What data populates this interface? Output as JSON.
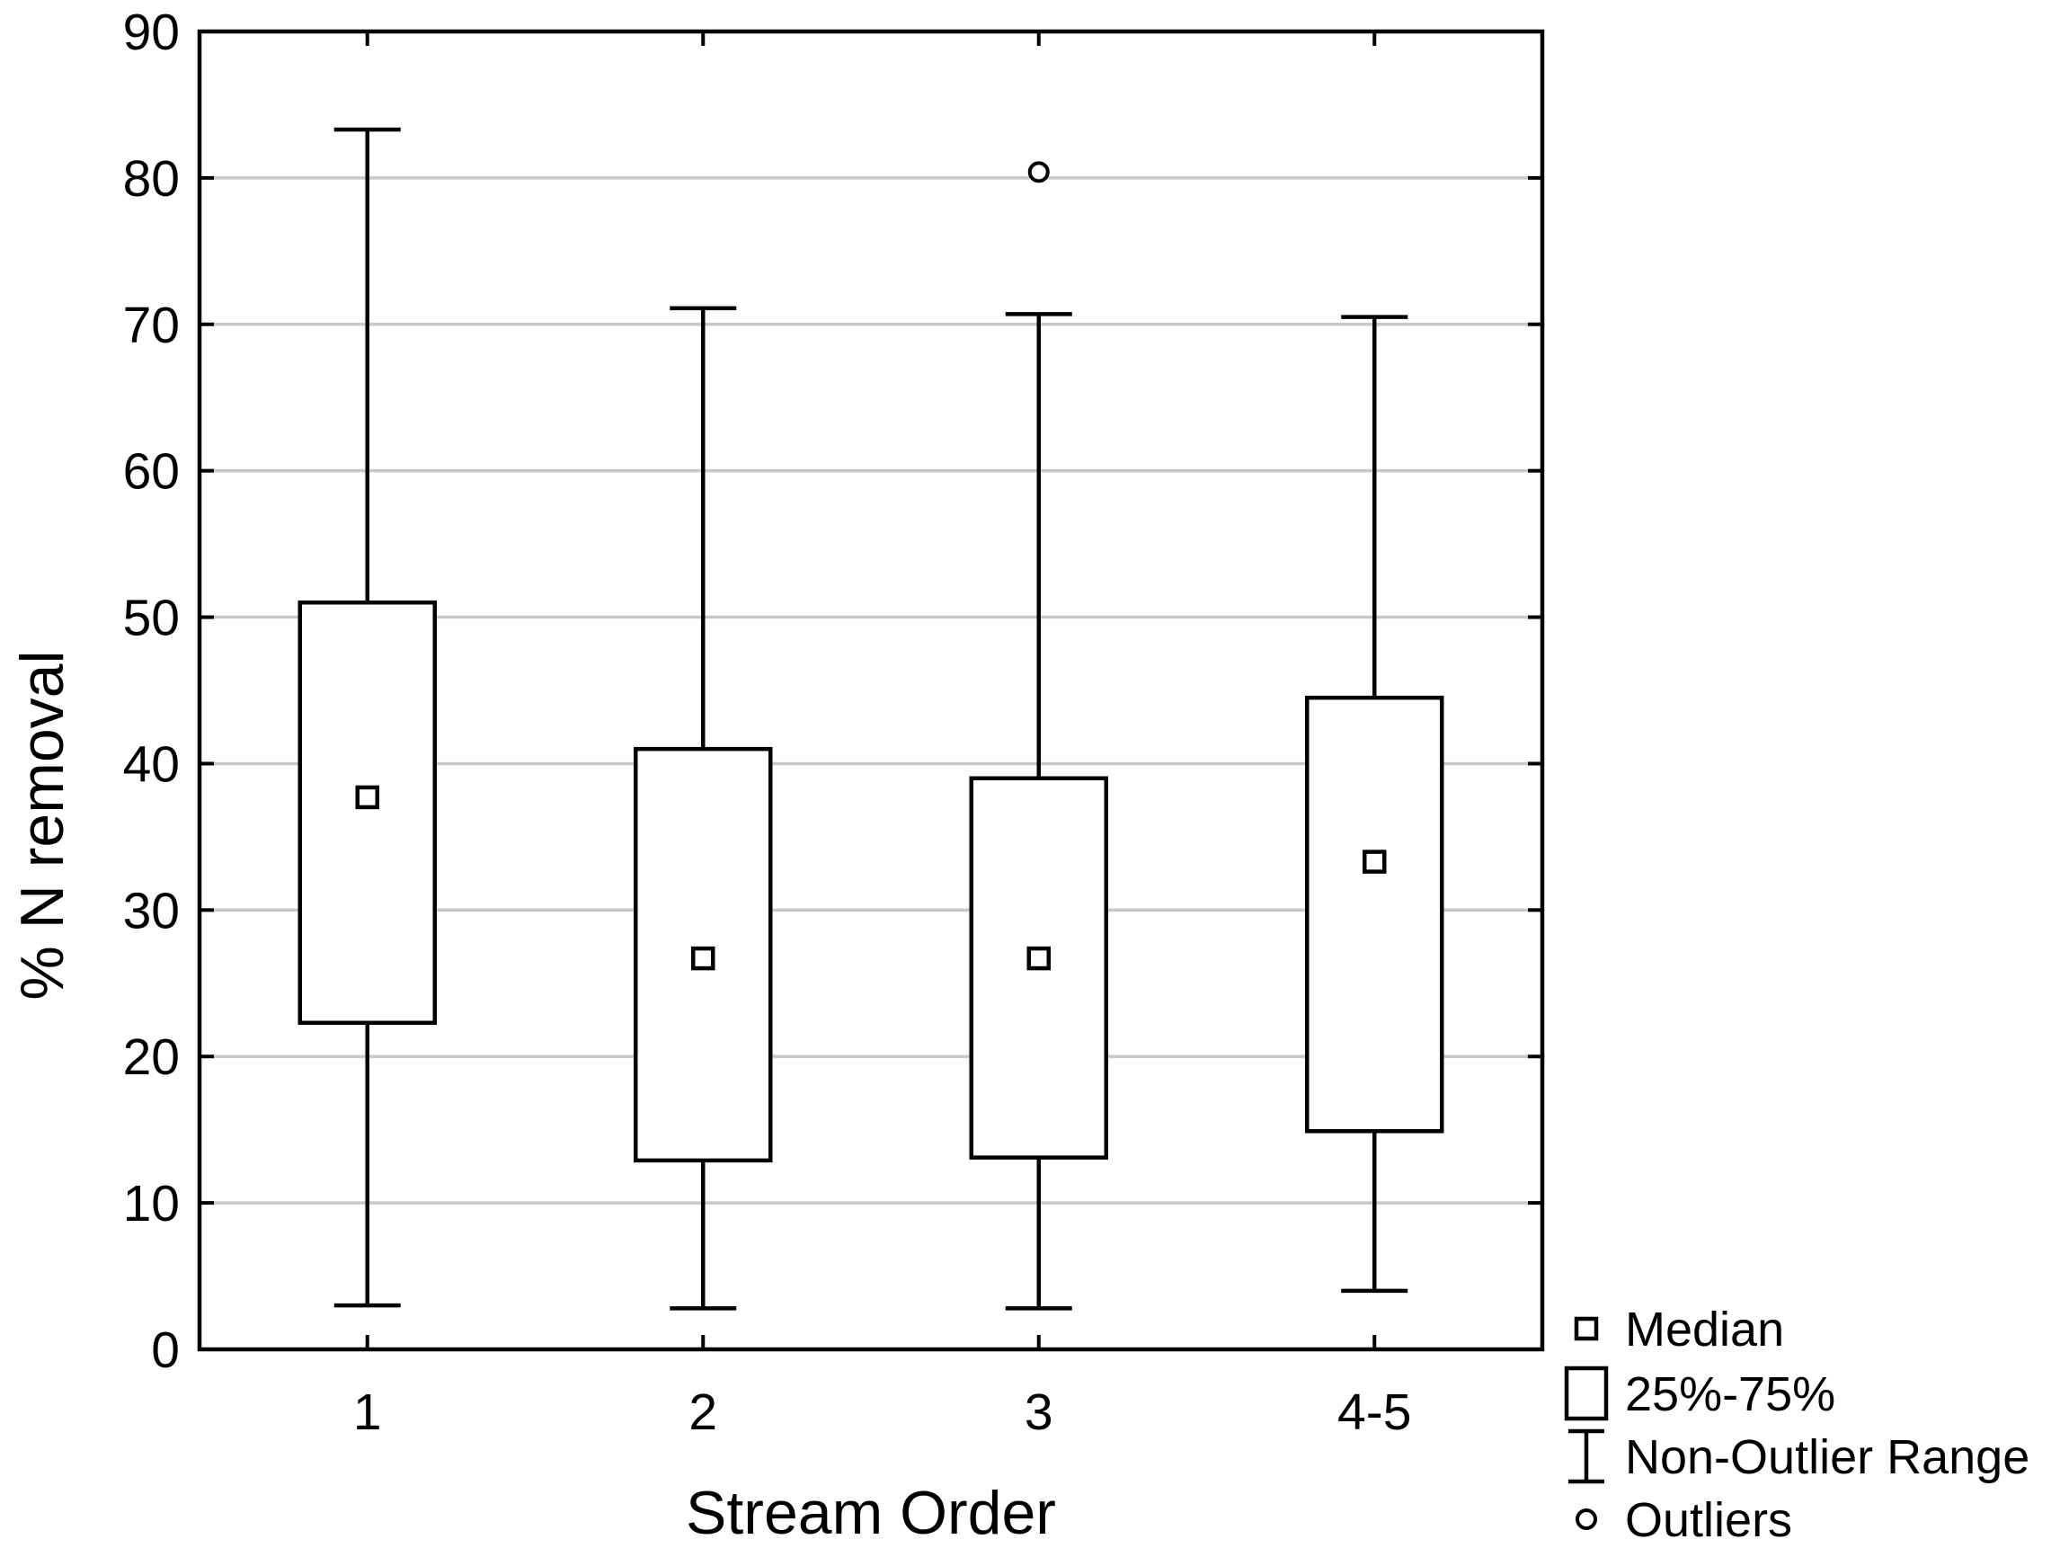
{
  "chart_data": {
    "type": "box",
    "title": "",
    "xlabel": "Stream Order",
    "ylabel": "% N removal",
    "ylim": [
      0,
      90
    ],
    "yticks": [
      0,
      10,
      20,
      30,
      40,
      50,
      60,
      70,
      80,
      90
    ],
    "grid": true,
    "legend_position": "bottom-right, outside plot",
    "categories": [
      "1",
      "2",
      "3",
      "4-5"
    ],
    "boxes": [
      {
        "category": "1",
        "whisker_low": 3.0,
        "q1": 22.3,
        "median": 37.7,
        "q3": 51.0,
        "whisker_high": 83.3,
        "outliers": []
      },
      {
        "category": "2",
        "whisker_low": 2.8,
        "q1": 12.9,
        "median": 26.7,
        "q3": 41.0,
        "whisker_high": 71.1,
        "outliers": []
      },
      {
        "category": "3",
        "whisker_low": 2.8,
        "q1": 13.1,
        "median": 26.7,
        "q3": 39.0,
        "whisker_high": 70.7,
        "outliers": [
          80.4
        ]
      },
      {
        "category": "4-5",
        "whisker_low": 4.0,
        "q1": 14.9,
        "median": 33.3,
        "q3": 44.5,
        "whisker_high": 70.5,
        "outliers": []
      }
    ],
    "legend": [
      {
        "symbol": "median-marker",
        "label": "Median"
      },
      {
        "symbol": "box",
        "label": "25%-75%"
      },
      {
        "symbol": "whisker",
        "label": "Non-Outlier Range"
      },
      {
        "symbol": "outlier-circle",
        "label": "Outliers"
      }
    ],
    "colors": {
      "line": "#000000",
      "grid": "#c8c8c8",
      "fill": "#ffffff"
    }
  }
}
